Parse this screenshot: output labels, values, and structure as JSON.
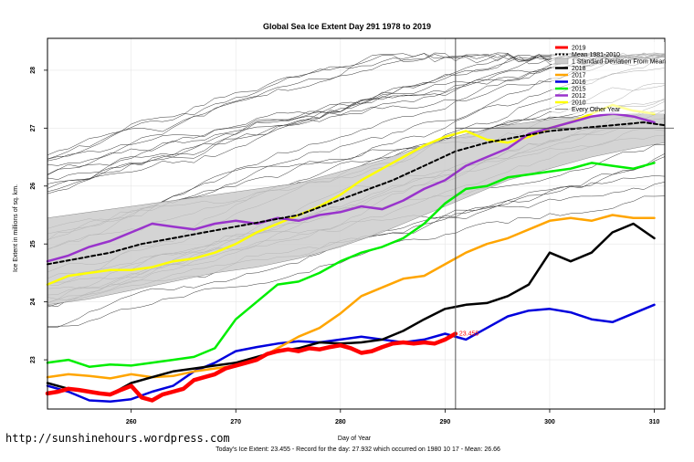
{
  "chart_data": {
    "type": "line",
    "title": "Global Sea Ice Extent Day 291 1978 to 2019",
    "xlabel": "Day of Year",
    "ylabel": "Ice Extent in millions of sq. km.",
    "xlim": [
      252,
      311
    ],
    "ylim": [
      22.15,
      28.55
    ],
    "xticks": [
      "260",
      "270",
      "280",
      "290",
      "300",
      "310"
    ],
    "yticks": [
      "23",
      "24",
      "25",
      "26",
      "27",
      "28"
    ],
    "grid": true,
    "legend_position": "top-right",
    "marker_day": 291,
    "series": [
      {
        "name": "2019",
        "color": "#ff0000",
        "width": 4.5,
        "x": [
          252,
          253,
          254,
          255,
          256,
          257,
          258,
          259,
          260,
          261,
          262,
          263,
          264,
          265,
          266,
          267,
          268,
          269,
          270,
          271,
          272,
          273,
          274,
          275,
          276,
          277,
          278,
          279,
          280,
          281,
          282,
          283,
          284,
          285,
          286,
          287,
          288,
          289,
          290,
          291
        ],
        "y": [
          22.42,
          22.45,
          22.5,
          22.48,
          22.45,
          22.42,
          22.4,
          22.48,
          22.55,
          22.35,
          22.3,
          22.4,
          22.45,
          22.5,
          22.65,
          22.7,
          22.75,
          22.85,
          22.9,
          22.95,
          23.0,
          23.1,
          23.15,
          23.18,
          23.15,
          23.2,
          23.18,
          23.22,
          23.25,
          23.2,
          23.12,
          23.15,
          23.22,
          23.28,
          23.3,
          23.28,
          23.3,
          23.28,
          23.35,
          23.45
        ]
      },
      {
        "name": "Mean 1981-2010",
        "color": "#000000",
        "width": 2,
        "dash": "4,3",
        "x": [
          252,
          255,
          258,
          261,
          264,
          267,
          270,
          273,
          276,
          279,
          282,
          285,
          288,
          291,
          294,
          297,
          300,
          303,
          306,
          309,
          311
        ],
        "y": [
          24.65,
          24.75,
          24.85,
          25.0,
          25.1,
          25.2,
          25.3,
          25.4,
          25.5,
          25.7,
          25.9,
          26.1,
          26.35,
          26.6,
          26.75,
          26.85,
          26.95,
          27.0,
          27.05,
          27.1,
          27.05
        ]
      },
      {
        "name": "2018",
        "color": "#000000",
        "width": 2.5,
        "x": [
          252,
          254,
          256,
          258,
          260,
          262,
          264,
          266,
          268,
          270,
          272,
          274,
          276,
          278,
          280,
          282,
          284,
          286,
          288,
          290,
          292,
          294,
          296,
          298,
          300,
          302,
          304,
          306,
          308,
          310
        ],
        "y": [
          22.6,
          22.5,
          22.45,
          22.4,
          22.6,
          22.7,
          22.8,
          22.85,
          22.9,
          22.95,
          23.05,
          23.15,
          23.2,
          23.3,
          23.28,
          23.3,
          23.35,
          23.5,
          23.7,
          23.88,
          23.95,
          23.98,
          24.1,
          24.3,
          24.85,
          24.7,
          24.85,
          25.2,
          25.35,
          25.1
        ]
      },
      {
        "name": "2017",
        "color": "#ffa500",
        "width": 2.5,
        "x": [
          252,
          254,
          256,
          258,
          260,
          262,
          264,
          266,
          268,
          270,
          272,
          274,
          276,
          278,
          280,
          282,
          284,
          286,
          288,
          290,
          292,
          294,
          296,
          298,
          300,
          302,
          304,
          306,
          308,
          310
        ],
        "y": [
          22.7,
          22.75,
          22.72,
          22.68,
          22.75,
          22.7,
          22.72,
          22.8,
          22.85,
          22.9,
          23.0,
          23.2,
          23.4,
          23.55,
          23.8,
          24.1,
          24.25,
          24.4,
          24.45,
          24.65,
          24.85,
          25.0,
          25.1,
          25.25,
          25.4,
          25.45,
          25.4,
          25.5,
          25.45,
          25.45
        ]
      },
      {
        "name": "2016",
        "color": "#0000dd",
        "width": 2.5,
        "x": [
          252,
          254,
          256,
          258,
          260,
          262,
          264,
          266,
          268,
          270,
          272,
          274,
          276,
          278,
          280,
          282,
          284,
          286,
          288,
          290,
          292,
          294,
          296,
          298,
          300,
          302,
          304,
          306,
          308,
          310
        ],
        "y": [
          22.55,
          22.45,
          22.3,
          22.28,
          22.32,
          22.45,
          22.55,
          22.8,
          22.95,
          23.15,
          23.22,
          23.28,
          23.32,
          23.3,
          23.35,
          23.4,
          23.35,
          23.3,
          23.35,
          23.45,
          23.35,
          23.55,
          23.75,
          23.85,
          23.88,
          23.82,
          23.7,
          23.65,
          23.8,
          23.95
        ]
      },
      {
        "name": "2015",
        "color": "#00ee00",
        "width": 2.5,
        "x": [
          252,
          254,
          256,
          258,
          260,
          262,
          264,
          266,
          268,
          270,
          272,
          274,
          276,
          278,
          280,
          282,
          284,
          286,
          288,
          290,
          292,
          294,
          296,
          298,
          300,
          302,
          304,
          306,
          308,
          310
        ],
        "y": [
          22.95,
          23.0,
          22.88,
          22.92,
          22.9,
          22.95,
          23.0,
          23.05,
          23.2,
          23.7,
          24.0,
          24.3,
          24.35,
          24.5,
          24.7,
          24.85,
          24.95,
          25.1,
          25.35,
          25.7,
          25.95,
          26.0,
          26.15,
          26.2,
          26.25,
          26.3,
          26.4,
          26.35,
          26.3,
          26.4
        ]
      },
      {
        "name": "2012",
        "color": "#9933cc",
        "width": 2.5,
        "x": [
          252,
          254,
          256,
          258,
          260,
          262,
          264,
          266,
          268,
          270,
          272,
          274,
          276,
          278,
          280,
          282,
          284,
          286,
          288,
          290,
          292,
          294,
          296,
          298,
          300,
          302,
          304,
          306,
          308,
          310
        ],
        "y": [
          24.7,
          24.8,
          24.95,
          25.05,
          25.2,
          25.35,
          25.3,
          25.25,
          25.35,
          25.4,
          25.35,
          25.45,
          25.4,
          25.5,
          25.55,
          25.65,
          25.6,
          25.75,
          25.95,
          26.1,
          26.35,
          26.5,
          26.65,
          26.9,
          27.0,
          27.1,
          27.2,
          27.25,
          27.2,
          27.1
        ]
      },
      {
        "name": "2010",
        "color": "#ffff00",
        "width": 2.5,
        "x": [
          252,
          254,
          256,
          258,
          260,
          262,
          264,
          266,
          268,
          270,
          272,
          274,
          276,
          278,
          280,
          282,
          284,
          286,
          288,
          290,
          292,
          294,
          296,
          298,
          300,
          302,
          304,
          306,
          308,
          310
        ],
        "y": [
          24.3,
          24.45,
          24.5,
          24.55,
          24.55,
          24.6,
          24.7,
          24.75,
          24.85,
          25.0,
          25.2,
          25.35,
          25.5,
          25.65,
          25.85,
          26.1,
          26.3,
          26.5,
          26.7,
          26.85,
          26.95,
          26.8,
          26.75,
          26.85,
          27.0,
          27.1,
          27.25,
          27.4,
          27.3,
          27.25
        ]
      }
    ],
    "legend_labels": [
      "2019",
      "Mean 1981-2010",
      "1 Standard Deviation From Mean",
      "2018",
      "2017",
      "2016",
      "2015",
      "2012",
      "2010",
      "Every Other Year"
    ],
    "band": {
      "name": "1 Standard Deviation From Mean",
      "color": "#cccccc",
      "x": [
        252,
        256,
        260,
        264,
        268,
        272,
        276,
        280,
        284,
        288,
        292,
        296,
        300,
        304,
        308,
        311
      ],
      "upper": [
        25.45,
        25.55,
        25.65,
        25.75,
        25.85,
        25.95,
        26.05,
        26.25,
        26.45,
        26.7,
        26.9,
        27.05,
        27.15,
        27.2,
        27.25,
        27.25
      ],
      "lower": [
        23.95,
        24.05,
        24.2,
        24.35,
        24.5,
        24.6,
        24.75,
        24.95,
        25.2,
        25.5,
        25.8,
        26.1,
        26.3,
        26.5,
        26.65,
        26.75
      ]
    },
    "annotation": {
      "text": "23.455",
      "x": 291,
      "y": 23.45,
      "color": "#ff0000"
    }
  },
  "credit": "http://sunshinehours.wordpress.com",
  "footer": "Today's Ice Extent: 23.455  - Record for the day: 27.932 which occurred on 1980 10 17  - Mean: 26.66"
}
